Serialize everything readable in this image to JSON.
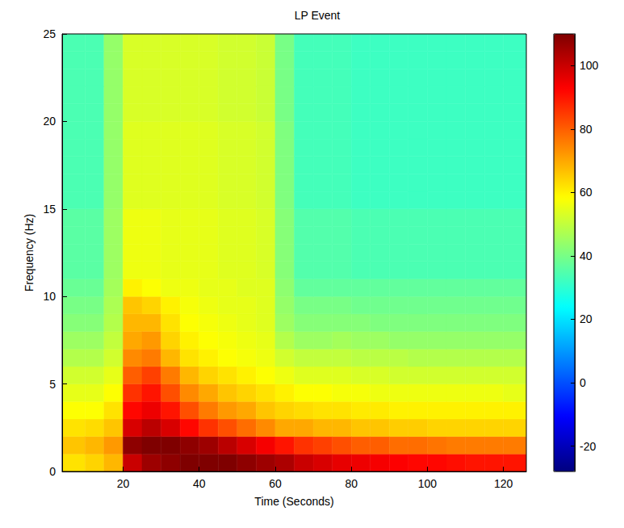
{
  "chart_data": {
    "type": "heatmap",
    "title": "LP Event",
    "xlabel": "Time (Seconds)",
    "ylabel": "Frequency (Hz)",
    "xlim": [
      4,
      126
    ],
    "xticks": [
      20,
      40,
      60,
      80,
      100,
      120
    ],
    "ylim": [
      0,
      25
    ],
    "yticks": [
      0,
      5,
      10,
      15,
      20,
      25
    ],
    "color": "jet",
    "color_range": [
      -28,
      110
    ],
    "color_ticks": [
      -20,
      0,
      20,
      40,
      60,
      80,
      100
    ],
    "x_edges": [
      4,
      10,
      15,
      20,
      25,
      30,
      35,
      40,
      45,
      50,
      55,
      60,
      65,
      70,
      75,
      80,
      85,
      90,
      95,
      100,
      105,
      110,
      115,
      120,
      126
    ],
    "y_edges": [
      0,
      1,
      2,
      3,
      4,
      5,
      6,
      7,
      8,
      9,
      10,
      11,
      12,
      13,
      14,
      15,
      16,
      17,
      18,
      19,
      20,
      21,
      22,
      23,
      24,
      25
    ],
    "cells": [
      [
        62,
        64,
        68,
        100,
        106,
        108,
        110,
        112,
        110,
        108,
        106,
        104,
        100,
        98,
        96,
        95,
        94,
        93,
        92,
        92,
        91,
        90,
        90,
        90
      ],
      [
        66,
        68,
        72,
        108,
        110,
        110,
        108,
        106,
        102,
        98,
        94,
        90,
        86,
        84,
        82,
        80,
        80,
        78,
        78,
        77,
        76,
        76,
        76,
        76
      ],
      [
        62,
        63,
        66,
        98,
        102,
        98,
        92,
        86,
        82,
        78,
        74,
        70,
        70,
        68,
        68,
        66,
        66,
        65,
        65,
        64,
        64,
        64,
        64,
        64
      ],
      [
        58,
        58,
        62,
        92,
        95,
        90,
        82,
        76,
        72,
        70,
        66,
        64,
        63,
        62,
        62,
        61,
        61,
        60,
        60,
        60,
        60,
        60,
        60,
        60
      ],
      [
        55,
        55,
        58,
        86,
        90,
        82,
        74,
        70,
        66,
        64,
        62,
        60,
        58,
        58,
        57,
        57,
        56,
        56,
        56,
        56,
        56,
        56,
        56,
        55
      ],
      [
        52,
        52,
        55,
        80,
        84,
        76,
        68,
        64,
        62,
        60,
        58,
        56,
        54,
        54,
        54,
        53,
        53,
        52,
        52,
        52,
        52,
        52,
        52,
        52
      ],
      [
        48,
        48,
        52,
        74,
        76,
        68,
        62,
        60,
        58,
        57,
        56,
        52,
        50,
        50,
        50,
        49,
        49,
        49,
        48,
        48,
        48,
        48,
        48,
        48
      ],
      [
        45,
        45,
        50,
        70,
        72,
        64,
        60,
        58,
        57,
        56,
        55,
        48,
        45,
        45,
        46,
        45,
        45,
        44,
        44,
        44,
        44,
        44,
        44,
        44
      ],
      [
        42,
        42,
        48,
        68,
        68,
        62,
        58,
        57,
        56,
        55,
        54,
        45,
        42,
        42,
        42,
        42,
        41,
        41,
        41,
        41,
        41,
        41,
        41,
        41
      ],
      [
        40,
        40,
        47,
        66,
        64,
        60,
        57,
        56,
        55,
        55,
        54,
        44,
        40,
        40,
        40,
        39,
        39,
        39,
        39,
        39,
        39,
        39,
        39,
        39
      ],
      [
        38,
        38,
        46,
        60,
        58,
        56,
        56,
        55,
        55,
        54,
        54,
        43,
        37,
        37,
        37,
        37,
        37,
        37,
        37,
        37,
        37,
        37,
        37,
        37
      ],
      [
        36,
        36,
        45,
        56,
        56,
        55,
        55,
        55,
        54,
        54,
        53,
        42,
        35,
        35,
        35,
        34,
        34,
        34,
        34,
        34,
        34,
        34,
        34,
        34
      ],
      [
        36,
        36,
        45,
        56,
        56,
        55,
        55,
        55,
        54,
        54,
        53,
        42,
        35,
        35,
        35,
        34,
        34,
        34,
        34,
        34,
        34,
        34,
        34,
        34
      ],
      [
        36,
        36,
        45,
        56,
        56,
        55,
        55,
        55,
        54,
        54,
        53,
        42,
        35,
        35,
        35,
        34,
        34,
        34,
        34,
        34,
        34,
        34,
        34,
        34
      ],
      [
        36,
        36,
        45,
        56,
        56,
        55,
        55,
        55,
        54,
        54,
        53,
        42,
        35,
        35,
        35,
        34,
        34,
        34,
        34,
        34,
        34,
        34,
        34,
        34
      ],
      [
        34,
        34,
        44,
        54,
        54,
        54,
        54,
        54,
        53,
        53,
        52,
        41,
        33,
        33,
        33,
        32,
        32,
        32,
        32,
        32,
        32,
        32,
        32,
        32
      ],
      [
        34,
        34,
        44,
        54,
        54,
        54,
        54,
        54,
        53,
        53,
        52,
        41,
        33,
        33,
        33,
        32,
        32,
        32,
        32,
        32,
        32,
        32,
        32,
        32
      ],
      [
        34,
        34,
        44,
        54,
        54,
        54,
        54,
        54,
        53,
        53,
        52,
        41,
        33,
        33,
        33,
        32,
        32,
        32,
        32,
        32,
        32,
        32,
        32,
        32
      ],
      [
        34,
        34,
        44,
        54,
        54,
        54,
        54,
        54,
        53,
        53,
        52,
        41,
        33,
        33,
        33,
        32,
        32,
        32,
        32,
        32,
        32,
        32,
        32,
        32
      ],
      [
        34,
        34,
        44,
        54,
        54,
        54,
        54,
        54,
        53,
        53,
        52,
        41,
        33,
        33,
        33,
        32,
        32,
        32,
        32,
        32,
        32,
        32,
        32,
        32
      ],
      [
        34,
        34,
        44,
        53,
        53,
        53,
        53,
        53,
        52,
        52,
        51,
        40,
        33,
        33,
        33,
        32,
        32,
        32,
        32,
        32,
        32,
        32,
        32,
        32
      ],
      [
        34,
        34,
        44,
        53,
        53,
        53,
        53,
        53,
        52,
        52,
        51,
        40,
        33,
        33,
        33,
        32,
        32,
        32,
        32,
        32,
        32,
        32,
        32,
        32
      ],
      [
        34,
        34,
        44,
        53,
        53,
        53,
        53,
        53,
        52,
        52,
        51,
        40,
        33,
        33,
        33,
        32,
        32,
        32,
        32,
        32,
        32,
        32,
        32,
        32
      ],
      [
        34,
        34,
        44,
        53,
        53,
        53,
        53,
        53,
        52,
        52,
        51,
        40,
        33,
        33,
        33,
        32,
        32,
        32,
        32,
        32,
        32,
        32,
        32,
        32
      ],
      [
        34,
        34,
        44,
        53,
        53,
        53,
        53,
        53,
        52,
        52,
        51,
        40,
        33,
        33,
        33,
        32,
        32,
        32,
        32,
        32,
        32,
        32,
        32,
        32
      ]
    ]
  }
}
